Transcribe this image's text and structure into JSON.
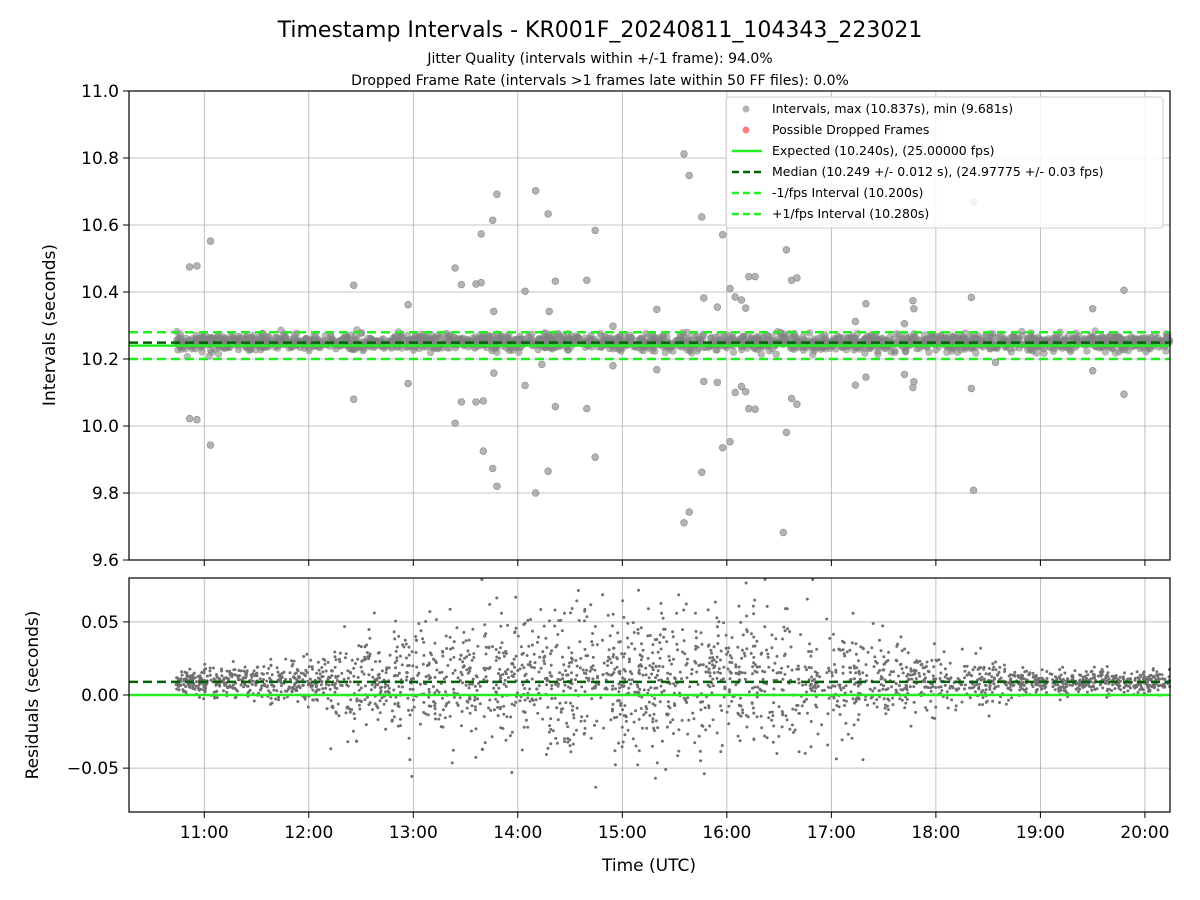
{
  "chart_data": {
    "type": "scatter",
    "title": "Timestamp Intervals - KR001F_20240811_104343_223021",
    "subtitle_lines": [
      "Jitter Quality (intervals within +/-1 frame): 94.0%",
      "Dropped Frame Rate (intervals >1 frames late within 50 FF files): 0.0%"
    ],
    "xlabel": "Time (UTC)",
    "x_tick_labels": [
      "11:00",
      "12:00",
      "13:00",
      "14:00",
      "15:00",
      "16:00",
      "17:00",
      "18:00",
      "19:00",
      "20:00"
    ],
    "x_range_hours": [
      10.28,
      20.24
    ],
    "data_start_hour": 10.73,
    "panels": [
      {
        "name": "intervals",
        "ylabel": "Intervals (seconds)",
        "ylim": [
          9.6,
          11.0
        ],
        "yticks": [
          9.6,
          9.8,
          10.0,
          10.2,
          10.4,
          10.6,
          10.8,
          11.0
        ],
        "ytick_labels": [
          "9.6",
          "9.8",
          "10.0",
          "10.2",
          "10.4",
          "10.6",
          "10.8",
          "11.0"
        ],
        "grid": true,
        "legend_position": "top-right",
        "reference_lines": [
          {
            "label": "Expected (10.240s), (25.00000 fps)",
            "y": 10.24,
            "color": "#22ee22",
            "style": "solid"
          },
          {
            "label": "Median (10.249 +/- 0.012 s), (24.97775 +/- 0.03 fps)",
            "y": 10.249,
            "color": "#006400",
            "style": "dashed"
          },
          {
            "label": "-1/fps Interval (10.200s)",
            "y": 10.2,
            "color": "#22ee22",
            "style": "dashed"
          },
          {
            "label": "+1/fps Interval (10.280s)",
            "y": 10.28,
            "color": "#22ee22",
            "style": "dashed"
          }
        ],
        "series": [
          {
            "name": "Intervals, max (10.837s), min (9.681s)",
            "color": "#808080",
            "center": 10.249,
            "count": 1900
          },
          {
            "name": "Possible Dropped Frames",
            "color": "#ff4444",
            "points": []
          }
        ],
        "outliers": [
          [
            10.86,
            10.475
          ],
          [
            10.93,
            10.478
          ],
          [
            11.06,
            10.552
          ],
          [
            10.86,
            10.022
          ],
          [
            10.93,
            10.019
          ],
          [
            11.06,
            9.943
          ],
          [
            12.43,
            10.42
          ],
          [
            12.43,
            10.08
          ],
          [
            12.95,
            10.362
          ],
          [
            12.95,
            10.127
          ],
          [
            13.4,
            10.472
          ],
          [
            13.4,
            10.008
          ],
          [
            13.46,
            10.422
          ],
          [
            13.46,
            10.072
          ],
          [
            13.6,
            10.424
          ],
          [
            13.6,
            10.072
          ],
          [
            13.65,
            10.428
          ],
          [
            13.65,
            10.573
          ],
          [
            13.67,
            9.925
          ],
          [
            13.67,
            10.075
          ],
          [
            13.76,
            10.614
          ],
          [
            13.76,
            9.873
          ],
          [
            13.8,
            10.692
          ],
          [
            13.8,
            9.82
          ],
          [
            13.77,
            10.158
          ],
          [
            13.77,
            10.342
          ],
          [
            14.07,
            10.402
          ],
          [
            14.07,
            10.121
          ],
          [
            14.17,
            10.702
          ],
          [
            14.17,
            9.8
          ],
          [
            14.29,
            10.633
          ],
          [
            14.29,
            9.865
          ],
          [
            14.36,
            10.432
          ],
          [
            14.36,
            10.058
          ],
          [
            14.23,
            10.184
          ],
          [
            14.3,
            10.342
          ],
          [
            14.66,
            10.435
          ],
          [
            14.66,
            10.052
          ],
          [
            14.74,
            10.584
          ],
          [
            14.74,
            9.907
          ],
          [
            14.91,
            10.298
          ],
          [
            14.91,
            10.18
          ],
          [
            15.33,
            10.348
          ],
          [
            15.33,
            10.168
          ],
          [
            15.59,
            10.812
          ],
          [
            15.59,
            9.711
          ],
          [
            15.64,
            10.748
          ],
          [
            15.64,
            9.743
          ],
          [
            15.76,
            10.624
          ],
          [
            15.76,
            9.862
          ],
          [
            15.78,
            10.382
          ],
          [
            15.78,
            10.133
          ],
          [
            15.91,
            10.355
          ],
          [
            15.91,
            10.13
          ],
          [
            15.96,
            10.571
          ],
          [
            15.96,
            9.935
          ],
          [
            16.03,
            10.41
          ],
          [
            16.03,
            9.953
          ],
          [
            16.08,
            10.385
          ],
          [
            16.08,
            10.1
          ],
          [
            16.14,
            10.376
          ],
          [
            16.14,
            10.118
          ],
          [
            16.18,
            10.352
          ],
          [
            16.18,
            10.102
          ],
          [
            16.21,
            10.446
          ],
          [
            16.21,
            10.052
          ],
          [
            16.27,
            10.446
          ],
          [
            16.27,
            10.05
          ],
          [
            16.57,
            10.526
          ],
          [
            16.57,
            9.981
          ],
          [
            16.54,
            9.682
          ],
          [
            16.62,
            10.435
          ],
          [
            16.62,
            10.082
          ],
          [
            16.67,
            10.442
          ],
          [
            16.67,
            10.065
          ],
          [
            17.23,
            10.312
          ],
          [
            17.23,
            10.122
          ],
          [
            17.33,
            10.365
          ],
          [
            17.33,
            10.146
          ],
          [
            17.7,
            10.305
          ],
          [
            17.7,
            10.154
          ],
          [
            17.78,
            10.374
          ],
          [
            17.78,
            10.115
          ],
          [
            17.79,
            10.35
          ],
          [
            17.79,
            10.132
          ],
          [
            18.34,
            10.384
          ],
          [
            18.34,
            10.112
          ],
          [
            18.36,
            9.808
          ],
          [
            18.36,
            10.668
          ],
          [
            18.57,
            10.26
          ],
          [
            18.57,
            10.19
          ],
          [
            19.5,
            10.35
          ],
          [
            19.5,
            10.165
          ],
          [
            19.8,
            10.405
          ],
          [
            19.8,
            10.095
          ]
        ]
      },
      {
        "name": "residuals",
        "ylabel": "Residuals (seconds)",
        "ylim": [
          -0.08,
          0.08
        ],
        "yticks": [
          -0.05,
          0.0,
          0.05
        ],
        "ytick_labels": [
          "−0.05",
          "0.00",
          "0.05"
        ],
        "grid": true,
        "reference_lines": [
          {
            "y": 0.0,
            "color": "#22ee22",
            "style": "solid"
          },
          {
            "y": 0.009,
            "color": "#006400",
            "style": "dashed"
          }
        ],
        "series": [
          {
            "color": "#707070",
            "center": 0.009,
            "count": 2600
          }
        ]
      }
    ]
  }
}
